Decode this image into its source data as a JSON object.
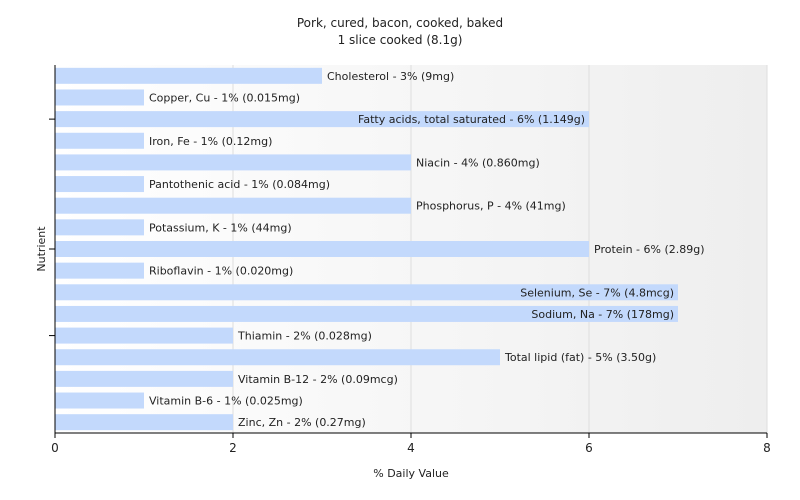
{
  "chart_data": {
    "type": "bar",
    "orientation": "horizontal",
    "title": "Pork, cured, bacon, cooked, baked",
    "subtitle": "1 slice cooked (8.1g)",
    "xlabel": "% Daily Value",
    "ylabel": "Nutrient",
    "xlim": [
      0,
      8
    ],
    "xticks": [
      0,
      2,
      4,
      6,
      8
    ],
    "grid": true,
    "bar_color": "#c3d9fc",
    "categories": [
      "Cholesterol",
      "Copper, Cu",
      "Fatty acids, total saturated",
      "Iron, Fe",
      "Niacin",
      "Pantothenic acid",
      "Phosphorus, P",
      "Potassium, K",
      "Protein",
      "Riboflavin",
      "Selenium, Se",
      "Sodium, Na",
      "Thiamin",
      "Total lipid (fat)",
      "Vitamin B-12",
      "Vitamin B-6",
      "Zinc, Zn"
    ],
    "values": [
      3,
      1,
      6,
      1,
      4,
      1,
      4,
      1,
      6,
      1,
      7,
      7,
      2,
      5,
      2,
      1,
      2
    ],
    "labels": [
      "Cholesterol - 3% (9mg)",
      "Copper, Cu - 1% (0.015mg)",
      "Fatty acids, total saturated - 6% (1.149g)",
      "Iron, Fe - 1% (0.12mg)",
      "Niacin - 4% (0.860mg)",
      "Pantothenic acid - 1% (0.084mg)",
      "Phosphorus, P - 4% (41mg)",
      "Potassium, K - 1% (44mg)",
      "Protein - 6% (2.89g)",
      "Riboflavin - 1% (0.020mg)",
      "Selenium, Se - 7% (4.8mcg)",
      "Sodium, Na - 7% (178mg)",
      "Thiamin - 2% (0.028mg)",
      "Total lipid (fat) - 5% (3.50g)",
      "Vitamin B-12 - 2% (0.09mcg)",
      "Vitamin B-6 - 1% (0.025mg)",
      "Zinc, Zn - 2% (0.27mg)"
    ]
  }
}
